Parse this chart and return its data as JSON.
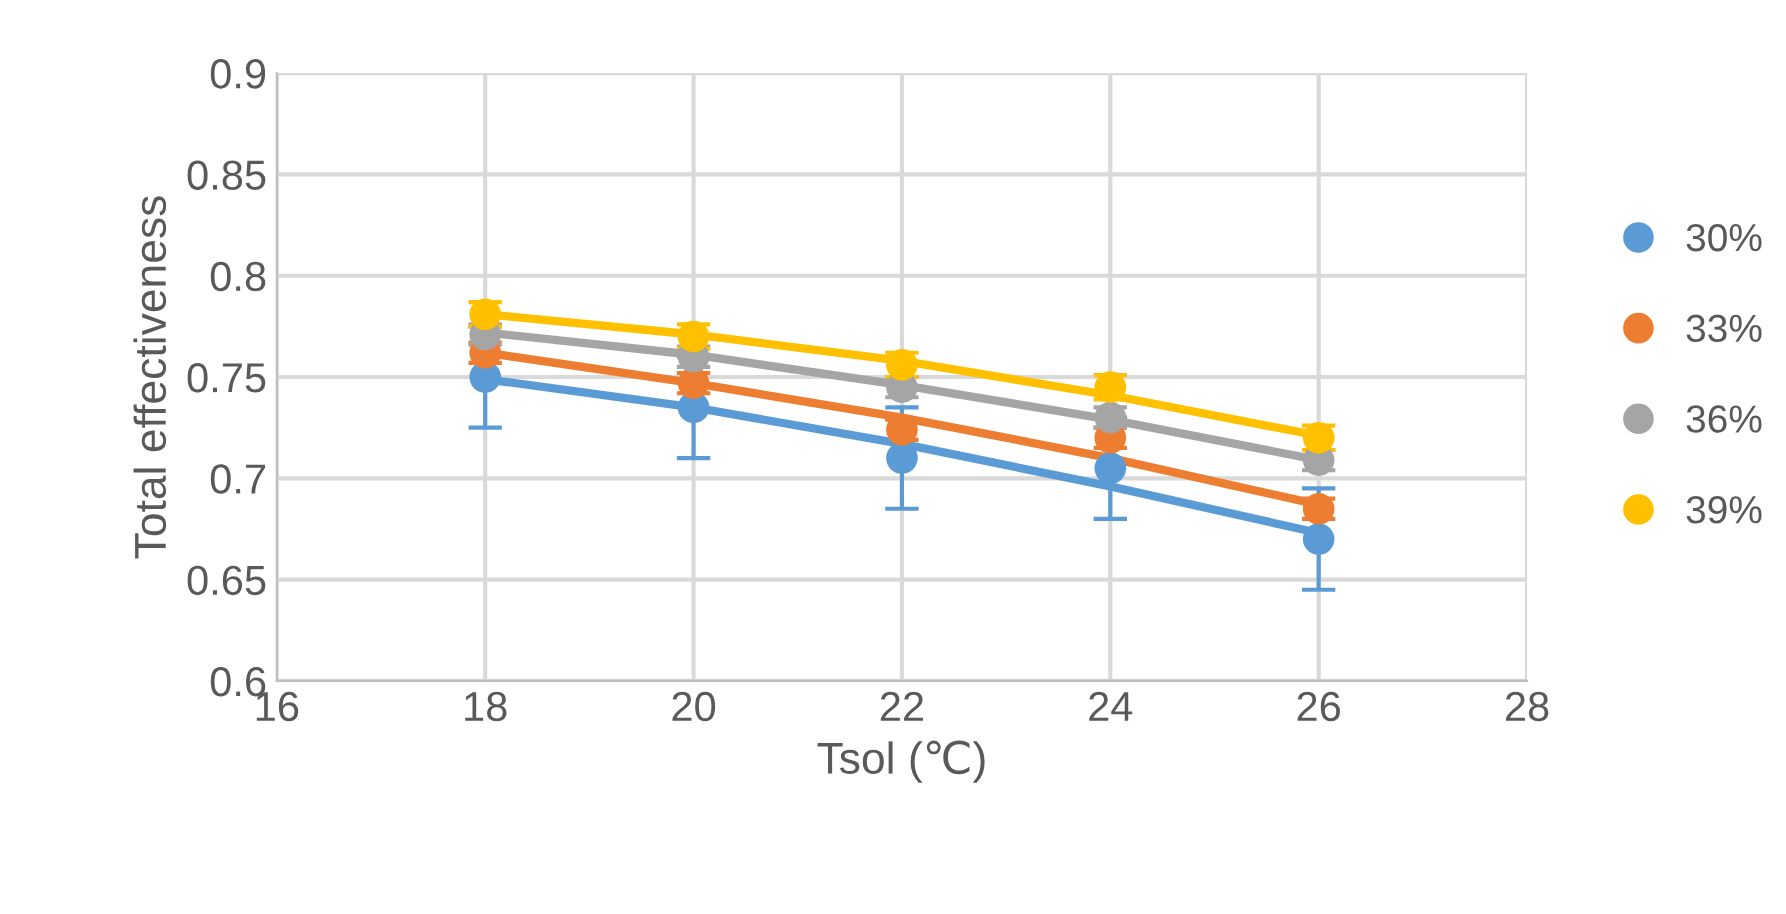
{
  "chart_data": {
    "type": "scatter",
    "xlabel": "Tsol (℃)",
    "ylabel": "Total effectiveness",
    "x": [
      18,
      20,
      22,
      24,
      26
    ],
    "series": [
      {
        "name": "30%",
        "color": "#5b9bd5",
        "values": [
          0.75,
          0.735,
          0.71,
          0.705,
          0.67
        ],
        "errors": [
          0.025,
          0.025,
          0.025,
          0.025,
          0.025
        ],
        "marker": "circle"
      },
      {
        "name": "33%",
        "color": "#ed7d31",
        "values": [
          0.762,
          0.747,
          0.724,
          0.72,
          0.685
        ],
        "errors": [
          0.005,
          0.005,
          0.005,
          0.005,
          0.005
        ],
        "marker": "circle"
      },
      {
        "name": "36%",
        "color": "#a5a5a5",
        "values": [
          0.771,
          0.76,
          0.745,
          0.73,
          0.709
        ],
        "errors": [
          0.005,
          0.005,
          0.005,
          0.005,
          0.005
        ],
        "marker": "circle"
      },
      {
        "name": "39%",
        "color": "#ffc000",
        "values": [
          0.781,
          0.77,
          0.756,
          0.745,
          0.72
        ],
        "errors": [
          0.006,
          0.006,
          0.006,
          0.006,
          0.006
        ],
        "marker": "circle"
      },
      {
        "type": "line",
        "color": "#5b9bd5",
        "values": [
          0.749,
          0.735,
          0.717,
          0.696,
          0.673
        ],
        "marker": "none"
      },
      {
        "type": "line",
        "color": "#ed7d31",
        "values": [
          0.762,
          0.747,
          0.73,
          0.71,
          0.687
        ],
        "marker": "none"
      },
      {
        "type": "line",
        "color": "#a5a5a5",
        "values": [
          0.772,
          0.761,
          0.746,
          0.729,
          0.709
        ],
        "marker": "none"
      },
      {
        "type": "line",
        "color": "#ffc000",
        "values": [
          0.781,
          0.771,
          0.758,
          0.741,
          0.721
        ],
        "marker": "none"
      }
    ],
    "xlim": [
      16,
      28
    ],
    "xticks": [
      16,
      18,
      20,
      22,
      24,
      26,
      28
    ],
    "ylim": [
      0.6,
      0.9
    ],
    "yticks": [
      0.6,
      0.65,
      0.7,
      0.75,
      0.8,
      0.85,
      0.9
    ],
    "grid": true,
    "legend": "right"
  }
}
